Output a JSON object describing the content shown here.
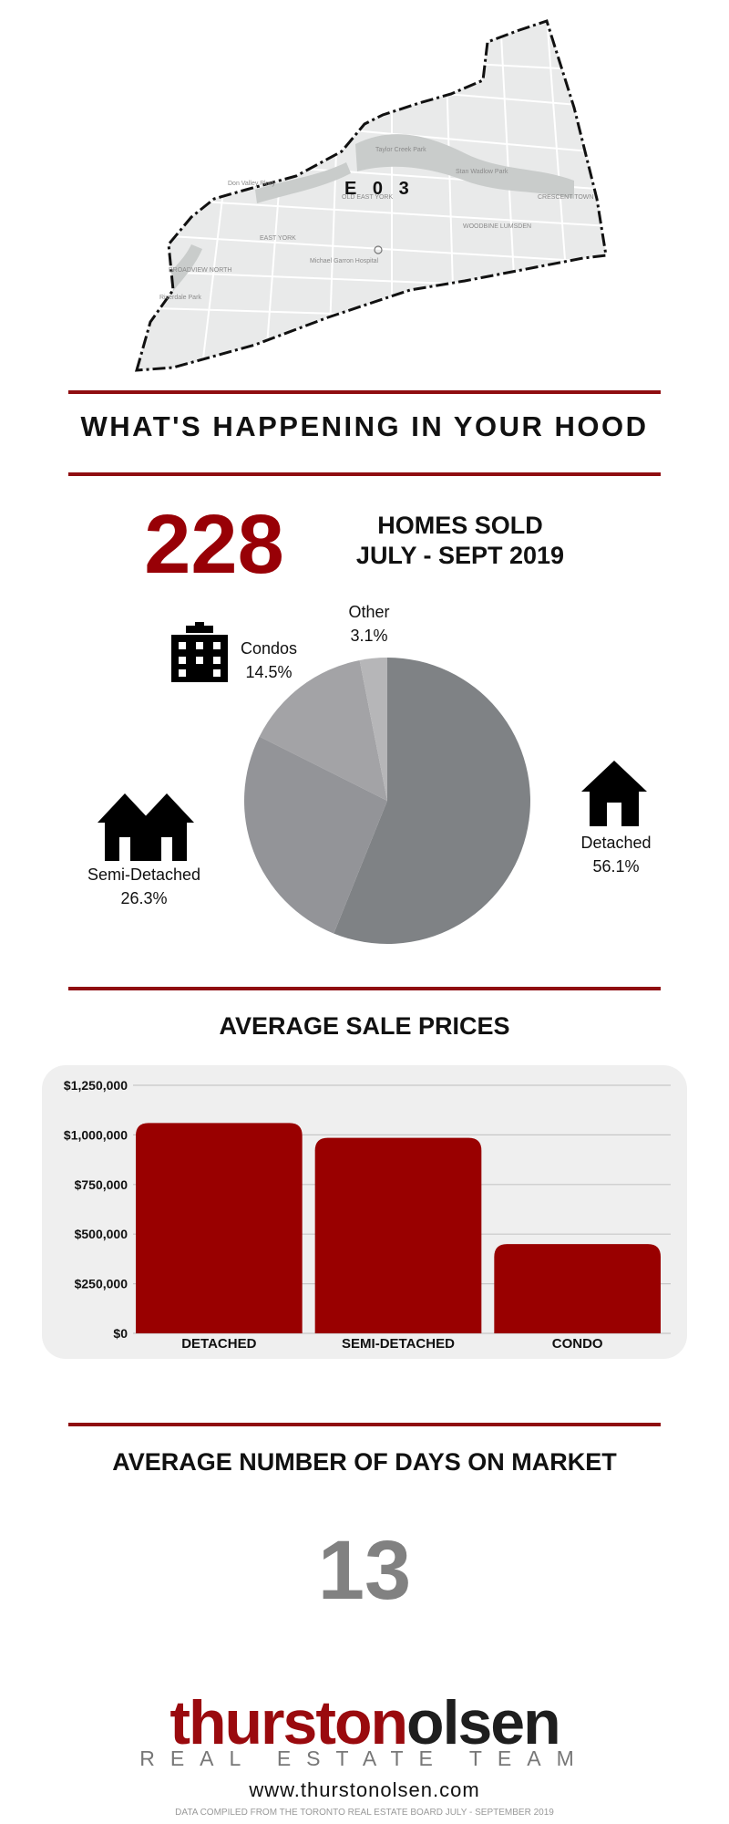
{
  "map": {
    "district_label": "E 0 3",
    "place_labels": [
      "EAST YORK",
      "Michael Garron Hospital",
      "Taylor Creek Park",
      "Stan Wadlow Park",
      "WOODBINE LUMSDEN",
      "BROADVIEW NORTH",
      "OLD EAST YORK",
      "CRESCENT TOWN",
      "Riverdale Park",
      "Don Valley Pkwy"
    ]
  },
  "header": {
    "title": "WHAT'S HAPPENING IN YOUR HOOD"
  },
  "summary": {
    "count": "228",
    "line1": "HOMES SOLD",
    "line2": "JULY - SEPT 2019"
  },
  "pie": {
    "colors": [
      "#7f8285",
      "#939498",
      "#a3a3a6",
      "#b6b6b8"
    ],
    "slices": [
      {
        "name": "Detached",
        "value": 56.1,
        "label": "56.1%"
      },
      {
        "name": "Semi-Detached",
        "value": 26.3,
        "label": "26.3%"
      },
      {
        "name": "Condos",
        "value": 14.5,
        "label": "14.5%"
      },
      {
        "name": "Other",
        "value": 3.1,
        "label": "3.1%"
      }
    ],
    "icons": {
      "detached": "house-icon",
      "semi": "semi-detached-houses-icon",
      "condos": "apartment-building-icon"
    }
  },
  "prices": {
    "title": "AVERAGE SALE PRICES"
  },
  "chart_data": {
    "type": "bar",
    "categories": [
      "DETACHED",
      "SEMI-DETACHED",
      "CONDO"
    ],
    "values": [
      1060000,
      985000,
      450000
    ],
    "yticks": [
      "$0",
      "$250,000",
      "$500,000",
      "$750,000",
      "$1,000,000",
      "$1,250,000"
    ],
    "ylim": [
      0,
      1250000
    ],
    "grid": true,
    "bar_color": "#990000"
  },
  "days": {
    "title": "AVERAGE NUMBER OF DAYS ON MARKET",
    "value": "13"
  },
  "footer": {
    "logo_part1": "thurston",
    "logo_part2": "olsen",
    "logo_sub": "REAL ESTATE TEAM",
    "website": "www.thurstonolsen.com",
    "source": "DATA COMPILED FROM THE TORONTO REAL ESTATE BOARD JULY - SEPTEMBER 2019"
  }
}
